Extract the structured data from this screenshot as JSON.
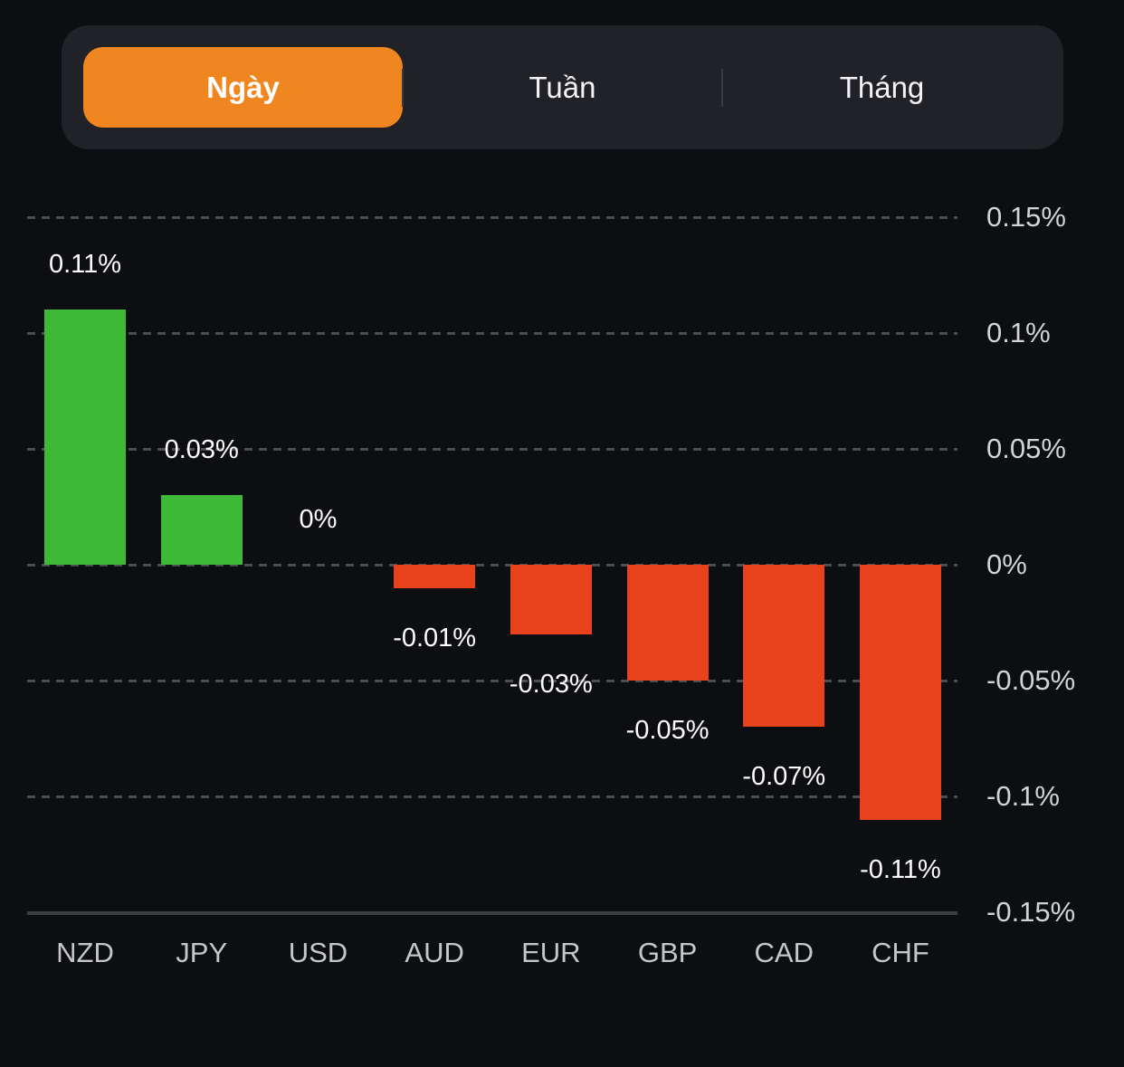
{
  "tabs": {
    "items": [
      {
        "label": "Ngày",
        "selected": true
      },
      {
        "label": "Tuần",
        "selected": false
      },
      {
        "label": "Tháng",
        "selected": false
      }
    ]
  },
  "chart_data": {
    "type": "bar",
    "title": "",
    "xlabel": "",
    "ylabel": "",
    "categories": [
      "NZD",
      "JPY",
      "USD",
      "AUD",
      "EUR",
      "GBP",
      "CAD",
      "CHF"
    ],
    "values": [
      0.11,
      0.03,
      0,
      -0.01,
      -0.03,
      -0.05,
      -0.07,
      -0.11
    ],
    "value_labels": [
      "0.11%",
      "0.03%",
      "0%",
      "-0.01%",
      "-0.03%",
      "-0.05%",
      "-0.07%",
      "-0.11%"
    ],
    "y_ticks": [
      0.15,
      0.1,
      0.05,
      0,
      -0.05,
      -0.1,
      -0.15
    ],
    "y_tick_labels": [
      "0.15%",
      "0.1%",
      "0.05%",
      "0%",
      "-0.05%",
      "-0.1%",
      "-0.15%"
    ],
    "ylim": [
      -0.15,
      0.15
    ],
    "grid": "horizontal-dashed",
    "legend": "none",
    "axis_label_position": "right",
    "colors": {
      "positive": "#3eb937",
      "negative": "#e8421c",
      "background": "#0d0e12",
      "gridline": "#4d4e53",
      "axis_line": "#3c3d42",
      "tick_text": "#d2d3d9",
      "category_text": "#c5c6cc",
      "value_text": "#fdfdfe",
      "accent_orange": "#f0861f"
    }
  }
}
